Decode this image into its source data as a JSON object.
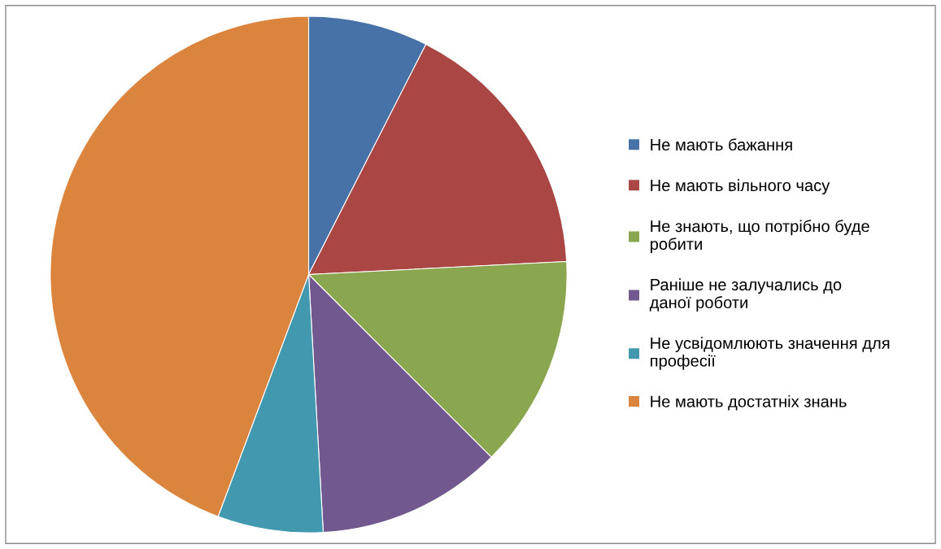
{
  "chart_data": {
    "type": "pie",
    "categories": [
      "Не мають бажання",
      "Не мають вільного часу",
      "Не знають, що потрібно буде робити",
      "Раніше не залучались до даної роботи",
      "Не усвідомлюють значення для професії",
      "Не мають достатніх знань"
    ],
    "values": [
      7.5,
      16.7,
      13.3,
      11.6,
      6.6,
      44.3
    ],
    "colors": [
      "#4672a8",
      "#aa4644",
      "#8aa64e",
      "#71588f",
      "#4298af",
      "#db843d"
    ],
    "legend": "right"
  }
}
